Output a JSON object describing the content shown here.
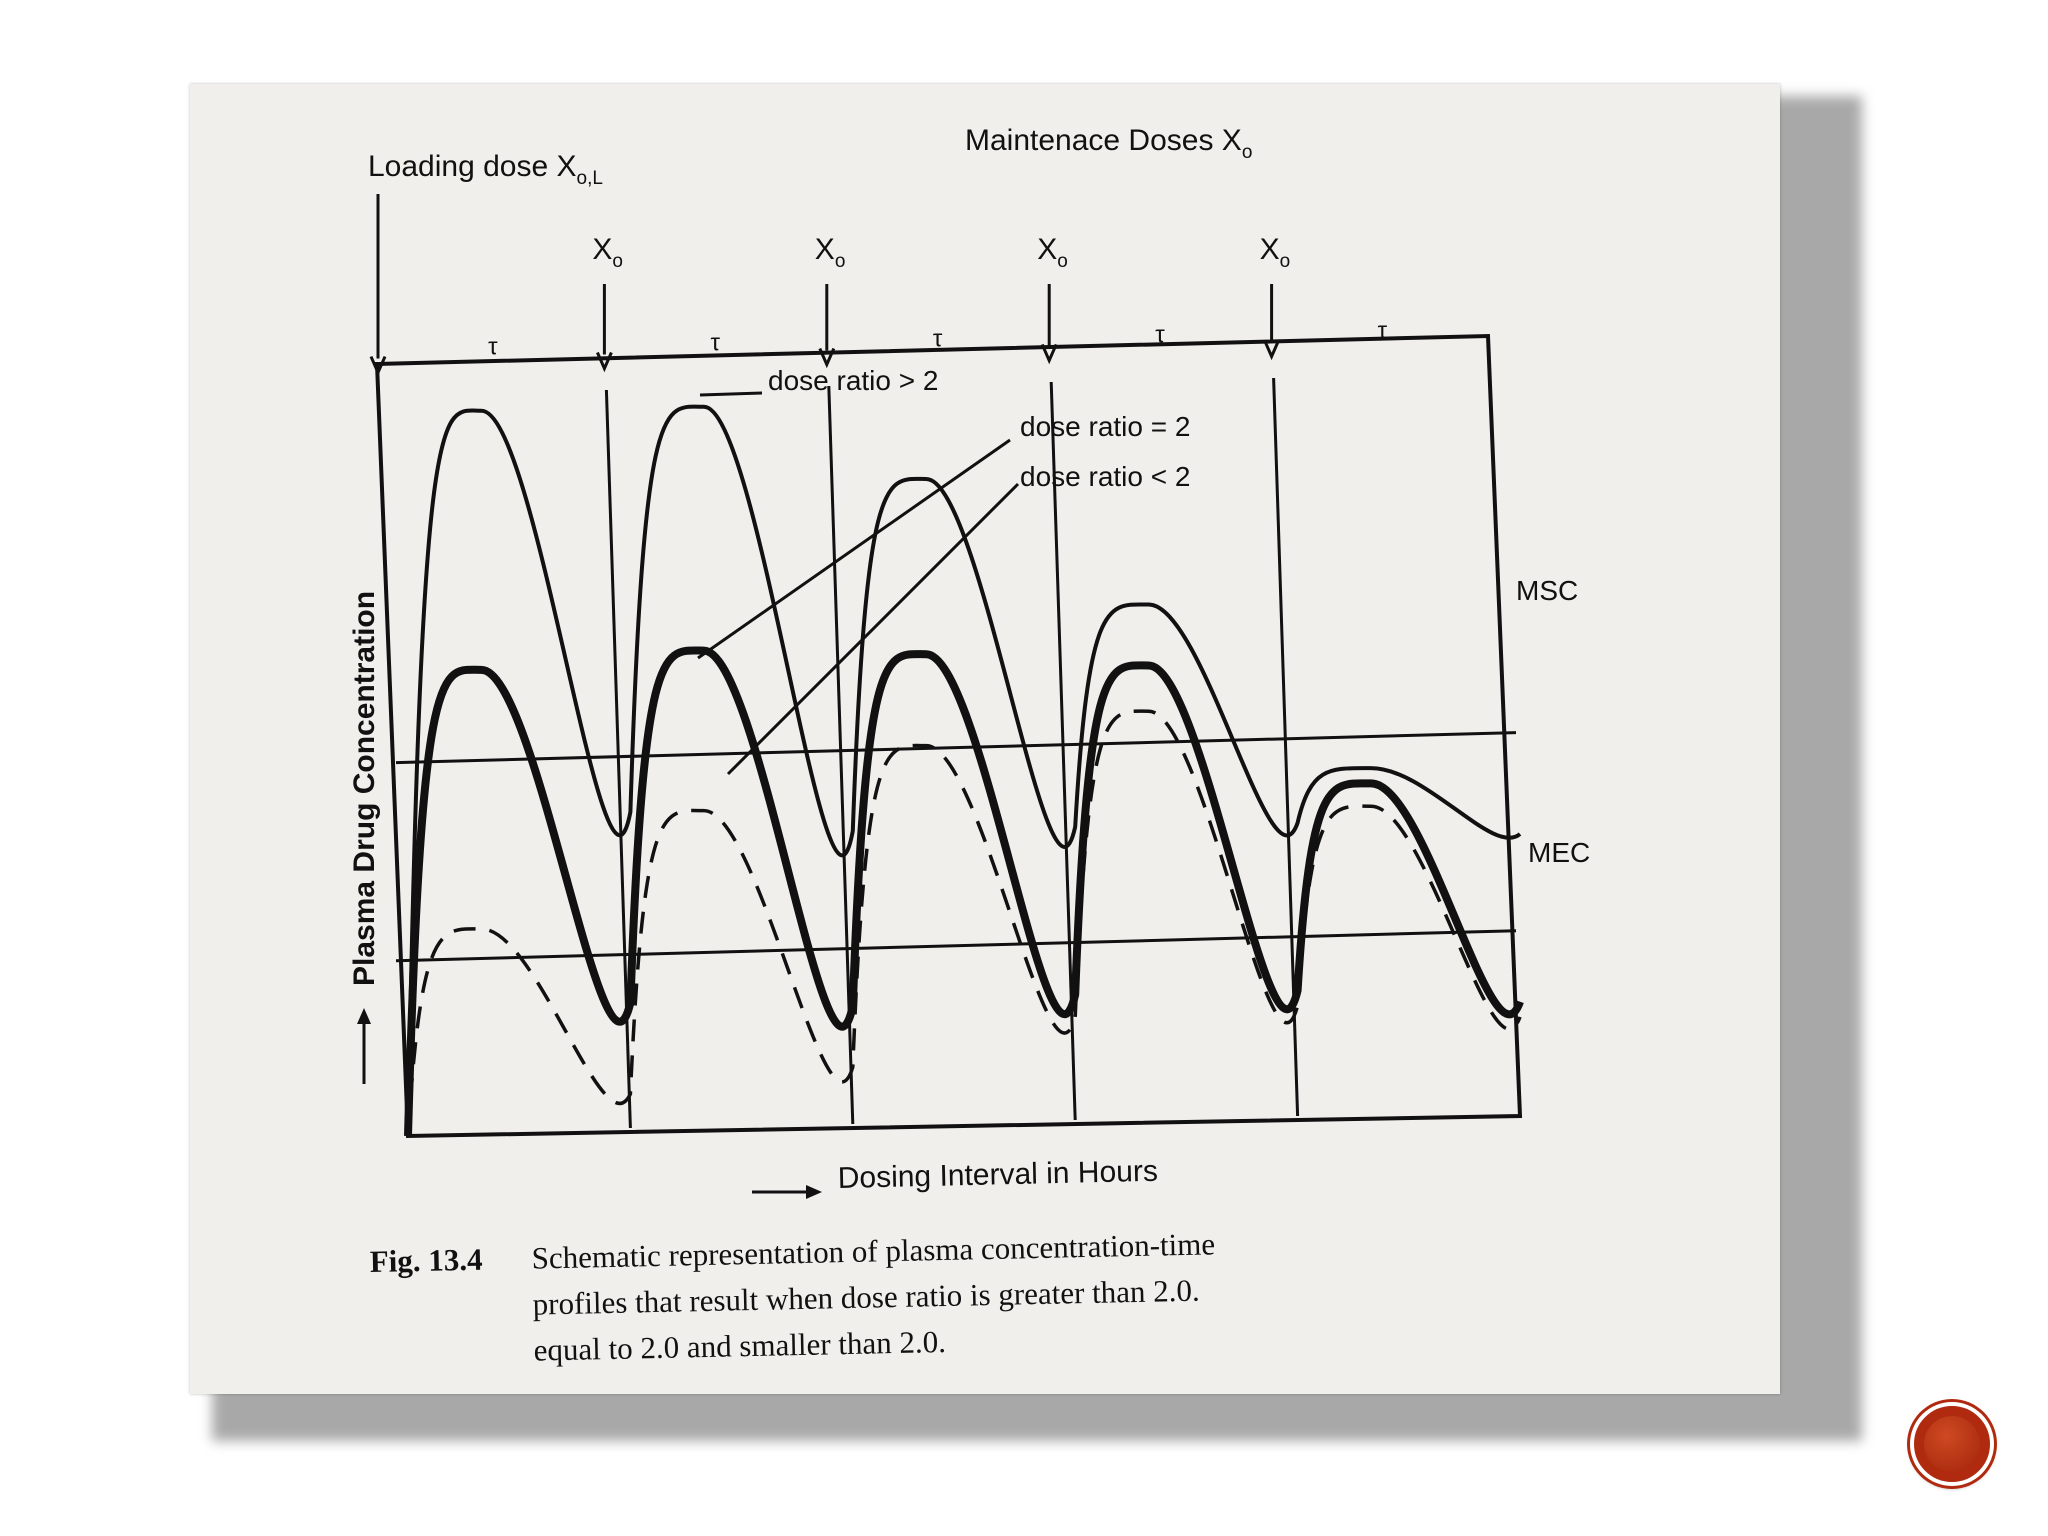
{
  "chart_data": {
    "type": "line",
    "title": "",
    "xlabel": "Dosing Interval in Hours",
    "ylabel": "Plasma Drug Concentration",
    "header_left": "Loading dose X",
    "header_left_sub": "o,L",
    "header_right": "Maintenace Doses X",
    "header_right_sub": "o",
    "dose_marker_label": "X",
    "dose_marker_sub": "o",
    "tau_symbol": "τ",
    "level_labels": {
      "msc": "MSC",
      "mec": "MEC"
    },
    "series": [
      {
        "name": "dose ratio > 2",
        "line_style": "solid-thin",
        "peaks": [
          0.95,
          0.95,
          0.85,
          0.68,
          0.46
        ],
        "troughs": [
          0.0,
          0.42,
          0.39,
          0.39,
          0.39
        ]
      },
      {
        "name": "dose ratio = 2",
        "line_style": "solid-thick",
        "peaks": [
          0.61,
          0.63,
          0.62,
          0.6,
          0.44
        ],
        "troughs": [
          0.0,
          0.17,
          0.16,
          0.17,
          0.17
        ]
      },
      {
        "name": "dose ratio < 2",
        "line_style": "dashed",
        "peaks": [
          0.27,
          0.42,
          0.5,
          0.54,
          0.41
        ],
        "troughs": [
          0.0,
          0.05,
          0.08,
          0.14,
          0.15
        ]
      }
    ],
    "msc_level": 0.49,
    "mec_level": 0.23,
    "intervals": 5,
    "grid": false,
    "caption_label": "Fig. 13.4",
    "caption_lines": [
      "Schematic representation of plasma concentration-time",
      "profiles that result when dose ratio is greater than 2.0.",
      "equal to 2.0 and smaller than 2.0."
    ]
  },
  "navigation": {
    "next_button_icon": "red-circle-icon"
  }
}
